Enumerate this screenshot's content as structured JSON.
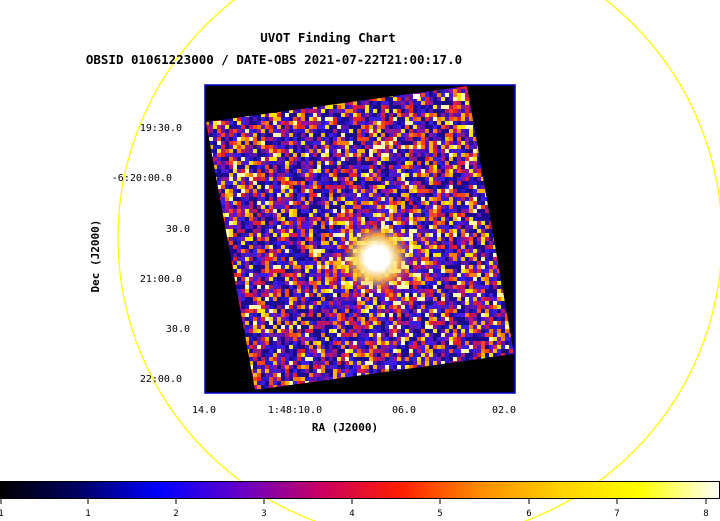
{
  "title": "UVOT Finding Chart",
  "subtitle": "OBSID 01061223000 / DATE-OBS 2021-07-22T21:00:17.0",
  "x_axis": {
    "label": "RA (J2000)",
    "ticks": [
      "14.0",
      "1:48:10.0",
      "06.0",
      "02.0"
    ]
  },
  "y_axis": {
    "label": "Dec (J2000)",
    "ticks": [
      "19:30.0",
      "-6:20:00.0",
      "30.0",
      "21:00.0",
      "30.0",
      "22:00.0"
    ]
  },
  "colorbar": {
    "ticks": [
      "1",
      "1",
      "2",
      "3",
      "4",
      "5",
      "6",
      "7",
      "8"
    ],
    "stops": [
      "#000000",
      "#000064",
      "#0000ff",
      "#6400c8",
      "#c80064",
      "#ff1e00",
      "#ff8c00",
      "#ffd200",
      "#ffff00",
      "#ffffff"
    ]
  },
  "colors": {
    "region_circle": "#ffff00",
    "image_border": "#0000c8",
    "background_field": "#000000",
    "source_core": "#ffffff"
  }
}
